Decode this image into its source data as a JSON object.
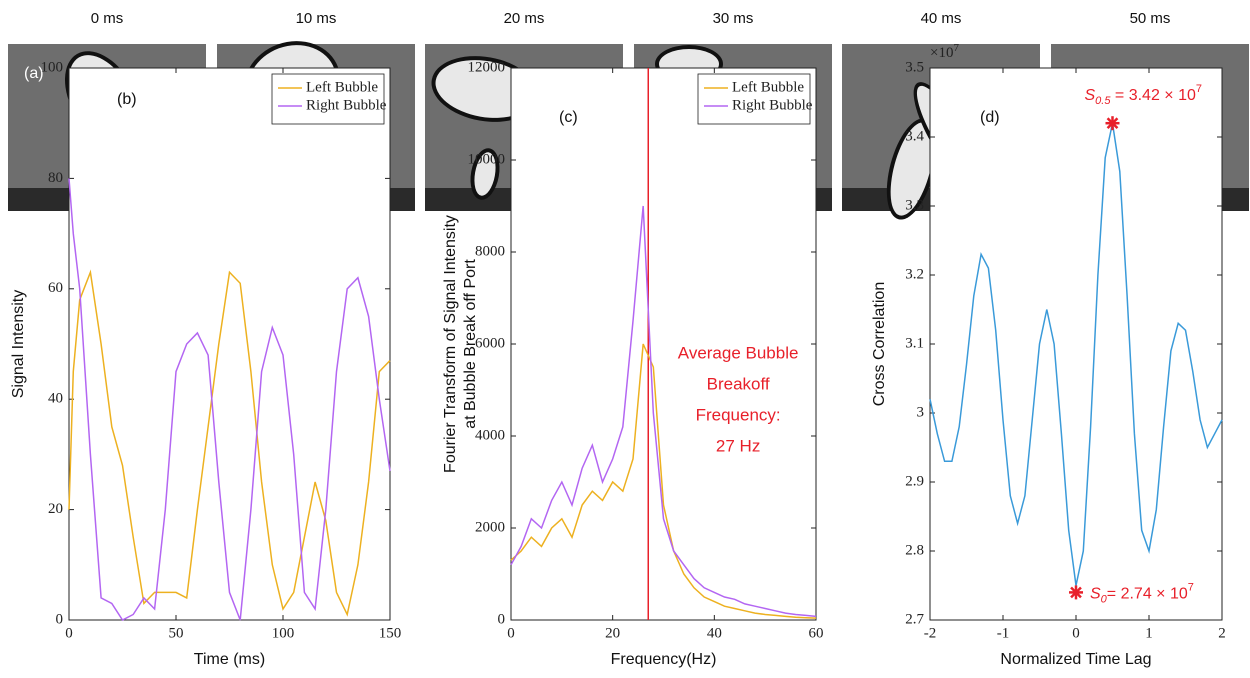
{
  "figure_a": {
    "label": "(a)",
    "frames": [
      "0 ms",
      "10 ms",
      "20 ms",
      "30 ms",
      "40 ms",
      "50 ms"
    ]
  },
  "chart_data": [
    {
      "type": "line",
      "panel_label": "(b)",
      "x_label": "Time (ms)",
      "y_label": [
        "Signal Intensity"
      ],
      "xlim": [
        0,
        150
      ],
      "xticks": [
        0,
        50,
        100,
        150
      ],
      "ylim": [
        0,
        100
      ],
      "yticks": [
        0,
        20,
        40,
        60,
        80,
        100
      ],
      "legend": "upper right",
      "x": [
        0,
        2,
        5,
        10,
        15,
        20,
        25,
        30,
        35,
        40,
        45,
        50,
        55,
        60,
        65,
        70,
        75,
        80,
        85,
        90,
        95,
        100,
        105,
        110,
        115,
        120,
        125,
        130,
        135,
        140,
        145,
        150
      ],
      "series": [
        {
          "name": "Left Bubble",
          "color": "#EDB120",
          "values": [
            20,
            45,
            58,
            63,
            50,
            35,
            28,
            15,
            3,
            5,
            5,
            5,
            4,
            20,
            35,
            50,
            63,
            61,
            45,
            25,
            10,
            2,
            5,
            15,
            25,
            18,
            5,
            1,
            10,
            25,
            45,
            47
          ]
        },
        {
          "name": "Right Bubble",
          "color": "#B366F2",
          "values": [
            80,
            70,
            60,
            30,
            4,
            3,
            0,
            1,
            4,
            2,
            20,
            45,
            50,
            52,
            48,
            25,
            5,
            0,
            20,
            45,
            53,
            48,
            30,
            5,
            2,
            20,
            45,
            60,
            62,
            55,
            40,
            27
          ]
        }
      ]
    },
    {
      "type": "line",
      "panel_label": "(c)",
      "x_label": "Frequency(Hz)",
      "y_label": [
        "Fourier Transform of Signal Intensity",
        "at Bubble Break off Port"
      ],
      "xlim": [
        0,
        60
      ],
      "xticks": [
        0,
        20,
        40,
        60
      ],
      "ylim": [
        0,
        12000
      ],
      "yticks": [
        0,
        2000,
        4000,
        6000,
        8000,
        10000,
        12000
      ],
      "legend": "upper right",
      "vline": 27,
      "vline_color": "#E8202A",
      "annotation": [
        "Average Bubble",
        "Breakoff",
        "Frequency:",
        "27 Hz"
      ],
      "x": [
        0,
        2,
        4,
        6,
        8,
        10,
        12,
        14,
        16,
        18,
        20,
        22,
        24,
        26,
        28,
        30,
        32,
        34,
        36,
        38,
        40,
        42,
        44,
        46,
        48,
        50,
        52,
        54,
        56,
        58,
        60
      ],
      "series": [
        {
          "name": "Left Bubble",
          "color": "#EDB120",
          "values": [
            1300,
            1500,
            1800,
            1600,
            2000,
            2200,
            1800,
            2500,
            2800,
            2600,
            3000,
            2800,
            3500,
            6000,
            5500,
            2500,
            1500,
            1000,
            700,
            500,
            400,
            300,
            250,
            200,
            150,
            120,
            100,
            80,
            60,
            50,
            40
          ]
        },
        {
          "name": "Right Bubble",
          "color": "#B366F2",
          "values": [
            1200,
            1600,
            2200,
            2000,
            2600,
            3000,
            2500,
            3300,
            3800,
            3000,
            3500,
            4200,
            6500,
            9000,
            4500,
            2200,
            1500,
            1200,
            900,
            700,
            600,
            500,
            450,
            350,
            300,
            250,
            200,
            150,
            120,
            100,
            80
          ]
        }
      ]
    },
    {
      "type": "line",
      "panel_label": "(d)",
      "x_label": "Normalized Time Lag",
      "y_label": [
        "Cross Correlation"
      ],
      "y_multiplier": {
        "base": "×10",
        "exponent": "7"
      },
      "xlim": [
        -2,
        2
      ],
      "xticks": [
        -2,
        -1,
        0,
        1,
        2
      ],
      "ylim": [
        2.7,
        3.5
      ],
      "yticks": [
        2.7,
        2.8,
        2.9,
        3,
        3.1,
        3.2,
        3.3,
        3.4,
        3.5
      ],
      "x": [
        -2,
        -1.9,
        -1.8,
        -1.7,
        -1.6,
        -1.5,
        -1.4,
        -1.3,
        -1.2,
        -1.1,
        -1,
        -0.9,
        -0.8,
        -0.7,
        -0.6,
        -0.5,
        -0.4,
        -0.3,
        -0.2,
        -0.1,
        0,
        0.1,
        0.2,
        0.3,
        0.4,
        0.5,
        0.6,
        0.7,
        0.8,
        0.9,
        1,
        1.1,
        1.2,
        1.3,
        1.4,
        1.5,
        1.6,
        1.7,
        1.8,
        1.9,
        2
      ],
      "series": [
        {
          "color": "#3A9AD9",
          "values": [
            3.02,
            2.97,
            2.93,
            2.93,
            2.98,
            3.07,
            3.17,
            3.23,
            3.21,
            3.12,
            2.99,
            2.88,
            2.84,
            2.88,
            2.99,
            3.1,
            3.15,
            3.1,
            2.97,
            2.83,
            2.75,
            2.8,
            2.98,
            3.2,
            3.37,
            3.42,
            3.35,
            3.17,
            2.97,
            2.83,
            2.8,
            2.86,
            2.98,
            3.09,
            3.13,
            3.12,
            3.06,
            2.99,
            2.95,
            2.97,
            2.99
          ]
        }
      ],
      "markers": [
        {
          "x": 0.5,
          "y": 3.42,
          "color": "#E8202A",
          "symbol": "S",
          "subscript": "0.5",
          "text": " = 3.42 × 10",
          "exponent": "7"
        },
        {
          "x": 0,
          "y": 2.74,
          "color": "#E8202A",
          "symbol": "S",
          "subscript": "0",
          "text": "= 2.74 × 10",
          "exponent": "7"
        }
      ]
    }
  ]
}
